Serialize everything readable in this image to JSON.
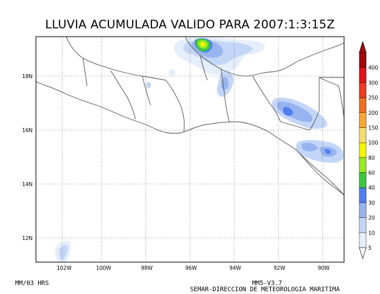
{
  "title": "LLUVIA ACUMULADA VALIDO PARA 2007:1:3:15Z",
  "footer": {
    "left": "MM/03 HRS",
    "model": "MM5-V3.7",
    "agency": "SEMAR-DIRECCION DE METEOROLOGIA MARITIMA"
  },
  "map": {
    "lon_labels": [
      "102W",
      "100W",
      "98W",
      "96W",
      "94W",
      "92W",
      "90W"
    ],
    "lat_labels": [
      "18N",
      "16N",
      "14N",
      "12N"
    ],
    "grid": true,
    "land_color": "#ffffff",
    "coast_color": "#555555"
  },
  "legend": {
    "levels": [
      "5",
      "10",
      "20",
      "30",
      "40",
      "60",
      "80",
      "100",
      "150",
      "200",
      "250",
      "300",
      "400"
    ],
    "colors": [
      "#e6eefc",
      "#c4d6f8",
      "#98b4f0",
      "#4f7ff0",
      "#3cc83c",
      "#96eb22",
      "#f5f500",
      "#f5dd6e",
      "#f8a532",
      "#f07020",
      "#ee3a20",
      "#e01414",
      "#a00a0a"
    ]
  },
  "rain_areas": [
    {
      "name": "oaxaca-veracruz-border",
      "intensity": "40-60"
    },
    {
      "name": "gulf-coast-tabasco",
      "intensity": "10-20"
    },
    {
      "name": "chiapas-highlands",
      "intensity": "20-30"
    },
    {
      "name": "guatemala-pacific-slope",
      "intensity": "10-20"
    },
    {
      "name": "ocean-southwest",
      "intensity": "5-10"
    }
  ]
}
